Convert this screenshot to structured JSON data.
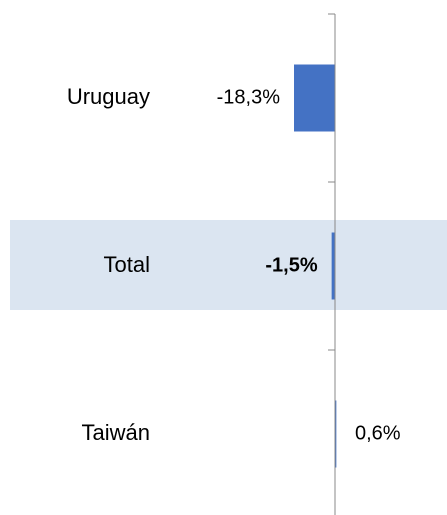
{
  "chart_data": {
    "type": "hbar",
    "categories": [
      "Uruguay",
      "Total",
      "Taiwán"
    ],
    "values": [
      -18.3,
      -1.5,
      0.6
    ],
    "value_labels": [
      "-18,3%",
      "-1,5%",
      "0,6%"
    ],
    "color": "#4472c4"
  }
}
